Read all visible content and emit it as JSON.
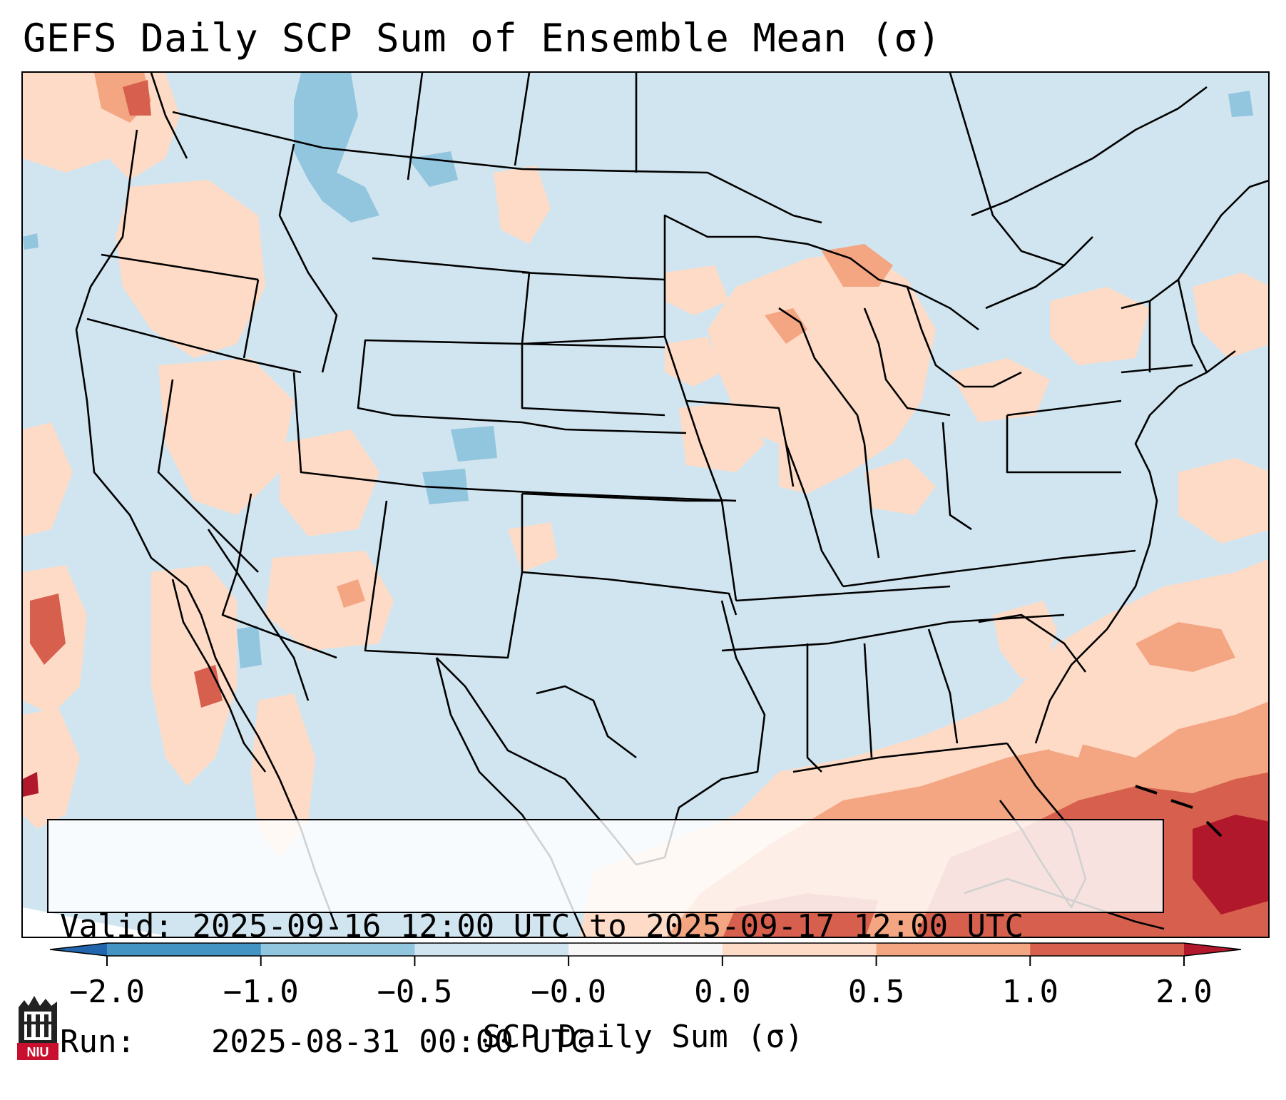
{
  "title": "GEFS Daily SCP Sum of Ensemble Mean (σ)",
  "info": {
    "valid_label": "Valid:",
    "valid_text": "2025-09-16 12:00 UTC to 2025-09-17 12:00 UTC",
    "run_label": "Run:",
    "run_text": "2025-08-31 00:00 UTC"
  },
  "colorbar": {
    "label": "SCP Daily Sum (σ)",
    "ticks": [
      "−2.0",
      "−1.0",
      "−0.5",
      "−0.0",
      "0.0",
      "0.5",
      "1.0",
      "2.0"
    ],
    "colors": [
      "#2166ac",
      "#4393c3",
      "#92c5de",
      "#d1e5f0",
      "#f7f7f7",
      "#fddbc7",
      "#f4a582",
      "#d6604d",
      "#b2182b"
    ]
  },
  "logo": {
    "text": "NIU"
  }
}
